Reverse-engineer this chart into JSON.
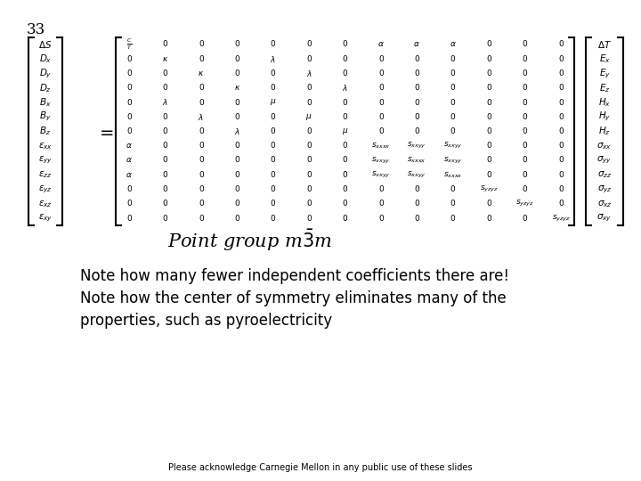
{
  "slide_number": "33",
  "title_point_group": "Point group m$\\bar{3}$m",
  "note_line1": "Note how many fewer independent coefficients there are!",
  "note_line2": "Note how the center of symmetry eliminates many of the",
  "note_line3": "properties, such as pyroelectricity",
  "footer": "Please acknowledge Carnegie Mellon in any public use of these slides",
  "background_color": "#ffffff",
  "text_color": "#000000",
  "matrix_fontsize": 9,
  "title_fontsize": 16,
  "note_fontsize": 14
}
